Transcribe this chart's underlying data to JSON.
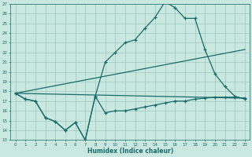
{
  "xlabel": "Humidex (Indice chaleur)",
  "xlim": [
    -0.5,
    23.5
  ],
  "ylim": [
    13,
    27
  ],
  "yticks": [
    13,
    14,
    15,
    16,
    17,
    18,
    19,
    20,
    21,
    22,
    23,
    24,
    25,
    26,
    27
  ],
  "xticks": [
    0,
    1,
    2,
    3,
    4,
    5,
    6,
    7,
    8,
    9,
    10,
    11,
    12,
    13,
    14,
    15,
    16,
    17,
    18,
    19,
    20,
    21,
    22,
    23
  ],
  "bg_color": "#c8e8e0",
  "line_color": "#1a6b6b",
  "grid_color": "#a0c8c0",
  "series_zigzag_x": [
    0,
    1,
    2,
    3,
    4,
    5,
    6,
    7,
    8,
    9,
    10,
    11,
    12,
    13,
    14,
    15,
    16,
    17,
    18,
    19,
    20,
    21,
    22,
    23
  ],
  "series_zigzag_y": [
    17.8,
    17.2,
    17.0,
    15.3,
    14.9,
    14.0,
    14.8,
    13.0,
    17.5,
    21.0,
    22.0,
    23.0,
    23.3,
    24.5,
    25.6,
    27.2,
    26.6,
    25.5,
    25.5,
    22.3,
    19.8,
    18.5,
    17.5,
    17.2
  ],
  "series_min_x": [
    0,
    1,
    2,
    3,
    4,
    5,
    6,
    7,
    8,
    9,
    10,
    11,
    12,
    13,
    14,
    15,
    16,
    17,
    18,
    19,
    20,
    21,
    22,
    23
  ],
  "series_min_y": [
    17.8,
    17.2,
    17.0,
    15.3,
    14.9,
    14.0,
    14.8,
    13.0,
    17.5,
    15.8,
    16.0,
    16.0,
    16.2,
    16.4,
    16.6,
    16.8,
    17.0,
    17.0,
    17.2,
    17.3,
    17.4,
    17.4,
    17.4,
    17.3
  ],
  "series_upper_line_x": [
    0,
    23
  ],
  "series_upper_line_y": [
    17.8,
    22.3
  ],
  "series_lower_line_x": [
    0,
    23
  ],
  "series_lower_line_y": [
    17.8,
    17.3
  ]
}
